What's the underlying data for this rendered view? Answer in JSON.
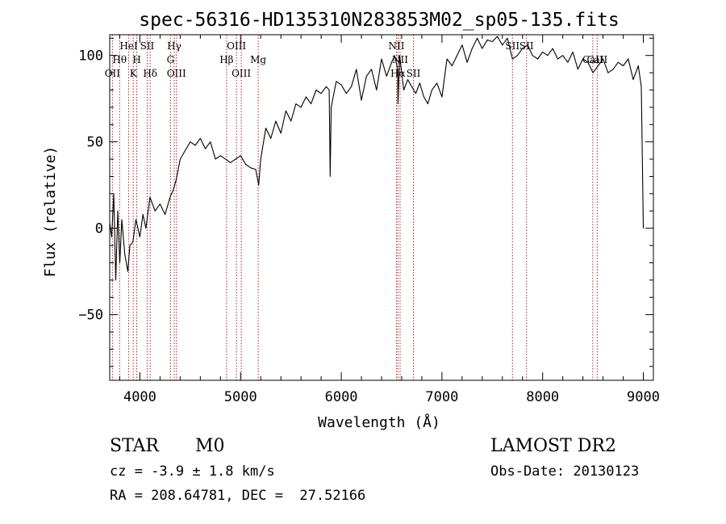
{
  "chart_data": {
    "type": "line",
    "title": "spec-56316-HD135310N283853M02_sp05-135.fits",
    "xlabel": "Wavelength (Å)",
    "ylabel": "Flux (relative)",
    "xlim": [
      3700,
      9100
    ],
    "ylim": [
      -88,
      112
    ],
    "xticks": [
      4000,
      5000,
      6000,
      7000,
      8000,
      9000
    ],
    "yticks": [
      -50,
      0,
      50,
      100
    ],
    "series": [
      {
        "name": "flux",
        "x": [
          3700,
          3720,
          3740,
          3760,
          3780,
          3800,
          3820,
          3850,
          3880,
          3900,
          3930,
          3960,
          4000,
          4030,
          4060,
          4100,
          4150,
          4200,
          4250,
          4300,
          4330,
          4360,
          4400,
          4450,
          4500,
          4550,
          4600,
          4650,
          4700,
          4750,
          4800,
          4850,
          4900,
          4950,
          5000,
          5050,
          5100,
          5150,
          5180,
          5200,
          5250,
          5300,
          5350,
          5400,
          5450,
          5500,
          5550,
          5600,
          5650,
          5700,
          5750,
          5800,
          5850,
          5880,
          5890,
          5900,
          5950,
          6000,
          6050,
          6100,
          6150,
          6200,
          6250,
          6300,
          6350,
          6400,
          6450,
          6500,
          6530,
          6560,
          6563,
          6580,
          6620,
          6660,
          6700,
          6740,
          6780,
          6820,
          6860,
          6900,
          6950,
          7000,
          7050,
          7100,
          7150,
          7200,
          7250,
          7300,
          7350,
          7400,
          7450,
          7500,
          7550,
          7600,
          7650,
          7700,
          7750,
          7800,
          7850,
          7900,
          7950,
          8000,
          8050,
          8100,
          8150,
          8200,
          8250,
          8300,
          8350,
          8400,
          8450,
          8500,
          8550,
          8600,
          8650,
          8700,
          8750,
          8800,
          8850,
          8900,
          8950,
          8980,
          8990,
          9000
        ],
        "y": [
          3,
          -5,
          20,
          -30,
          10,
          -20,
          5,
          -15,
          -25,
          -10,
          -8,
          5,
          -5,
          8,
          0,
          18,
          10,
          14,
          8,
          18,
          22,
          28,
          40,
          45,
          50,
          48,
          52,
          46,
          50,
          40,
          42,
          40,
          38,
          40,
          42,
          37,
          35,
          34,
          25,
          40,
          58,
          52,
          62,
          55,
          68,
          62,
          72,
          70,
          76,
          72,
          80,
          78,
          82,
          80,
          30,
          70,
          85,
          83,
          78,
          82,
          92,
          74,
          88,
          92,
          80,
          98,
          88,
          96,
          100,
          92,
          72,
          100,
          80,
          86,
          82,
          78,
          84,
          76,
          72,
          80,
          84,
          76,
          98,
          94,
          100,
          106,
          96,
          104,
          110,
          104,
          109,
          108,
          111,
          106,
          110,
          98,
          100,
          104,
          106,
          100,
          98,
          102,
          100,
          104,
          98,
          100,
          96,
          102,
          92,
          98,
          96,
          90,
          94,
          98,
          90,
          92,
          96,
          94,
          98,
          86,
          94,
          82,
          40,
          0
        ]
      }
    ],
    "line_markers": [
      {
        "label": "OII",
        "x": 3727,
        "row": 3
      },
      {
        "label": "Hθ",
        "x": 3798,
        "row": 2
      },
      {
        "label": "HeI",
        "x": 3889,
        "row": 1
      },
      {
        "label": "K",
        "x": 3934,
        "row": 3
      },
      {
        "label": "SII",
        "x": 4072,
        "row": 1
      },
      {
        "label": "H",
        "x": 3969,
        "row": 2
      },
      {
        "label": "Hδ",
        "x": 4102,
        "row": 3
      },
      {
        "label": "Hγ",
        "x": 4341,
        "row": 1
      },
      {
        "label": "G",
        "x": 4304,
        "row": 2
      },
      {
        "label": "OIII",
        "x": 4363,
        "row": 3
      },
      {
        "label": "Hβ",
        "x": 4861,
        "row": 2
      },
      {
        "label": "OIII",
        "x": 4959,
        "row": 1
      },
      {
        "label": "OIII",
        "x": 5007,
        "row": 3
      },
      {
        "label": "Mg",
        "x": 5175,
        "row": 2
      },
      {
        "label": "NII",
        "x": 6548,
        "row": 1
      },
      {
        "label": "NII",
        "x": 6584,
        "row": 2
      },
      {
        "label": "Hα",
        "x": 6563,
        "row": 3
      },
      {
        "label": "SII",
        "x": 6717,
        "row": 3
      },
      {
        "label": "SII",
        "x": 7700,
        "row": 1
      },
      {
        "label": "SII",
        "x": 7840,
        "row": 1
      },
      {
        "label": "CaII",
        "x": 8498,
        "row": 2
      },
      {
        "label": "CaII",
        "x": 8542,
        "row": 2
      }
    ]
  },
  "info": {
    "object_class": "STAR",
    "subclass": "M0",
    "survey": "LAMOST DR2",
    "redshift_line": "cz = -3.9 ± 1.8 km/s",
    "obs_date_line": "Obs-Date: 20130123",
    "coords_line": "RA = 208.64781, DEC =  27.52166"
  }
}
